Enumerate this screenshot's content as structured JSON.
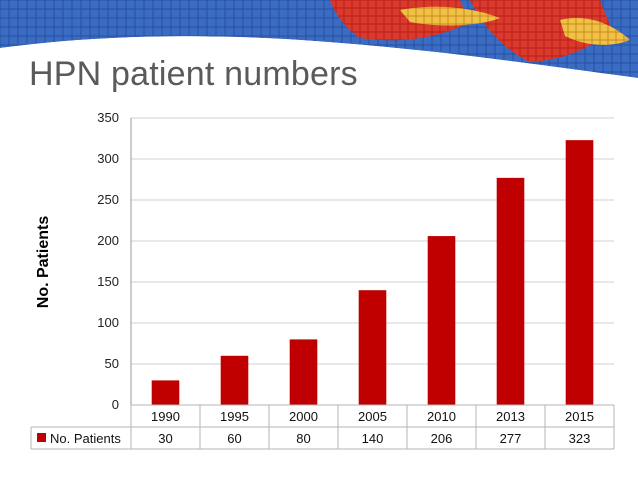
{
  "slide": {
    "title": "HPN patient numbers"
  },
  "colors": {
    "bar": "#c00000",
    "grid": "#d0d0d0",
    "title": "#5a5a5a"
  },
  "chart_data": {
    "type": "bar",
    "categories": [
      "1990",
      "1995",
      "2000",
      "2005",
      "2010",
      "2013",
      "2015"
    ],
    "series": [
      {
        "name": "No. Patients",
        "values": [
          30,
          60,
          80,
          140,
          206,
          277,
          323
        ]
      }
    ],
    "ylabel": "No. Patients",
    "ylim": [
      0,
      350
    ],
    "yticks": [
      0,
      50,
      100,
      150,
      200,
      250,
      300,
      350
    ],
    "grid": true,
    "data_table": true
  }
}
